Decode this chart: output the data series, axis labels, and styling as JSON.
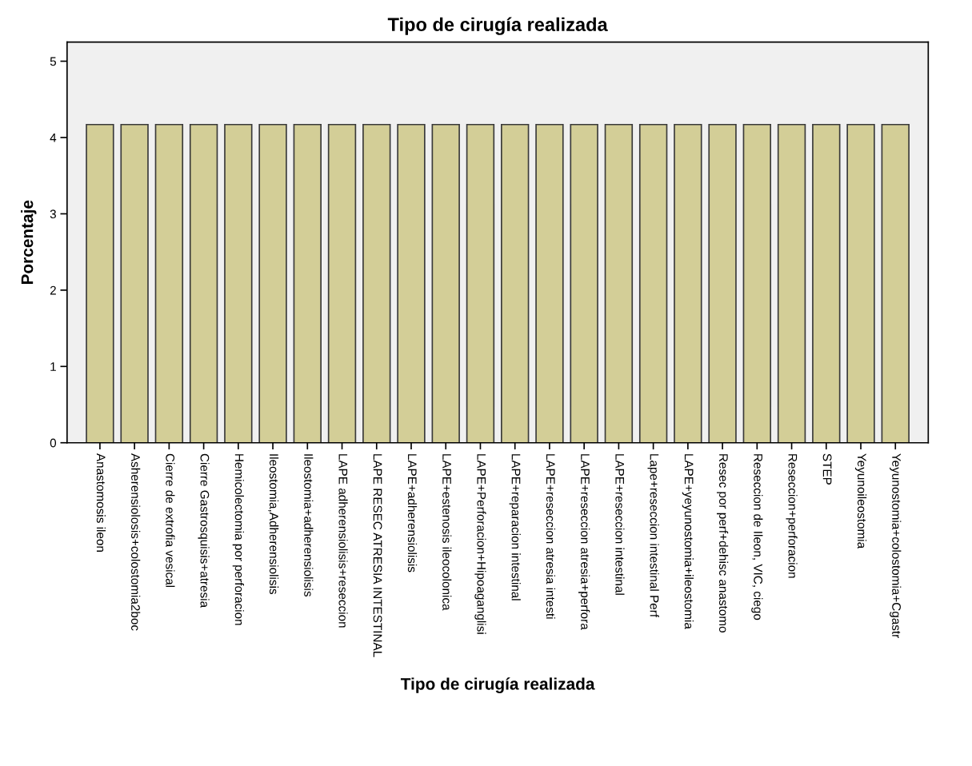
{
  "chart_data": {
    "type": "bar",
    "title": "Tipo de cirugía realizada",
    "xlabel": "Tipo de cirugía realizada",
    "ylabel": "Porcentaje",
    "categories": [
      "Anastomosis ileon",
      "Asherensiolosis+colostomia2boc",
      "Cierre de extrofia vesical",
      "Cierre Gastrosquisis+atresia",
      "Hemicolectomia por perforacion",
      "Ileostomia,Adherensiolisis",
      "Ileostomia+adherensiolisis",
      "LAPE adherensiolisis+reseccion",
      "LAPE RESEC ATRESIA INTESTINAL",
      "LAPE+adherensiolisis",
      "LAPE+estenosis ileocolonica",
      "LAPE+Perforacion+Hipoaganglisi",
      "LAPE+reparacion intestinal",
      "LAPE+reseccion atresia intesti",
      "LAPE+reseccion atresia+perfora",
      "LAPE+reseccion intestinal",
      "Lape+reseccion intestinal Perf",
      "LAPE+yeyunostomia+ileostomia",
      "Resec por perf+dehisc anastomo",
      "Reseccion de Ileon, VIC, ciego",
      "Reseccion+perforacion",
      "STEP",
      "Yeyunoileostomia",
      "Yeyunostomia+colostomia+Cgastr"
    ],
    "values": [
      4.17,
      4.17,
      4.17,
      4.17,
      4.17,
      4.17,
      4.17,
      4.17,
      4.17,
      4.17,
      4.17,
      4.17,
      4.17,
      4.17,
      4.17,
      4.17,
      4.17,
      4.17,
      4.17,
      4.17,
      4.17,
      4.17,
      4.17,
      4.17
    ],
    "color": "#d3ce97",
    "ylim": [
      0,
      5.25
    ],
    "yticks": [
      0,
      1,
      2,
      3,
      4,
      5
    ],
    "grid": false,
    "legend": false
  }
}
